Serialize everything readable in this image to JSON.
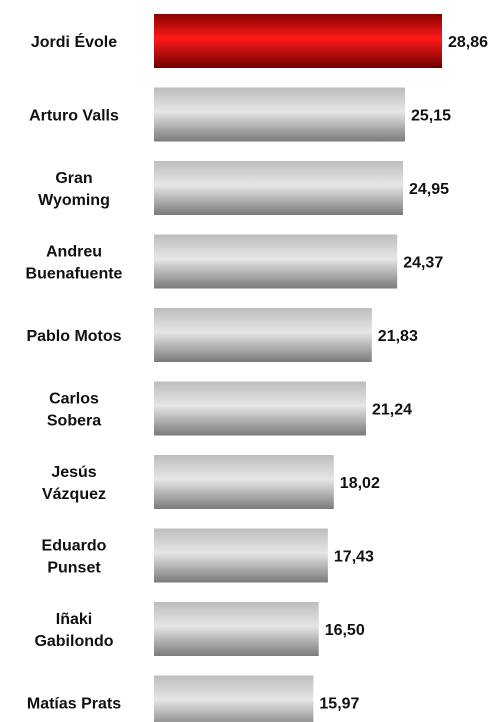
{
  "colors": {
    "highlight_bar": "#cc0000",
    "default_bar": "#a6a6a6",
    "text": "#111111",
    "background": "#ffffff"
  },
  "chart_data": {
    "type": "bar",
    "orientation": "horizontal",
    "categories": [
      [
        "Jordi Évole"
      ],
      [
        "Arturo Valls"
      ],
      [
        "Gran",
        "Wyoming"
      ],
      [
        "Andreu",
        "Buenafuente"
      ],
      [
        "Pablo Motos"
      ],
      [
        "Carlos",
        "Sobera"
      ],
      [
        "Jesús",
        "Vázquez"
      ],
      [
        "Eduardo",
        "Punset"
      ],
      [
        "Iñaki",
        "Gabilondo"
      ],
      [
        "Matías Prats"
      ]
    ],
    "values": [
      28.86,
      25.15,
      24.95,
      24.37,
      21.83,
      21.24,
      18.02,
      17.43,
      16.5,
      15.97
    ],
    "value_labels": [
      "28,86",
      "25,15",
      "24,95",
      "24,37",
      "21,83",
      "21,24",
      "18,02",
      "17,43",
      "16,50",
      "15,97"
    ],
    "highlight_index": 0,
    "xlim": [
      0,
      28.86
    ],
    "grid": false,
    "legend": "none"
  }
}
